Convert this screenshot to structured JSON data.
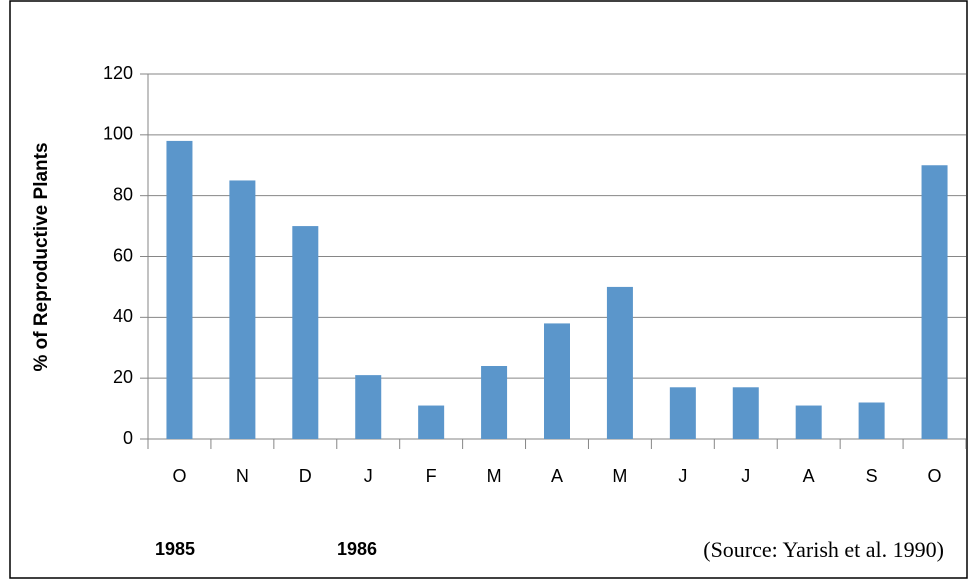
{
  "chart_data": {
    "type": "bar",
    "y_label": "% of Reproductive Plants",
    "categories": [
      "O",
      "N",
      "D",
      "J",
      "F",
      "M",
      "A",
      "M",
      "J",
      "J",
      "A",
      "S",
      "O"
    ],
    "values": [
      98,
      85,
      70,
      21,
      11,
      24,
      38,
      50,
      17,
      17,
      11,
      12,
      90
    ],
    "color": "#5b96cb",
    "ylim": [
      0,
      120
    ],
    "yticks": [
      0,
      20,
      40,
      60,
      80,
      100,
      120
    ],
    "grid": true,
    "annotations": [
      "1985",
      "1986",
      "(Source: Yarish et al. 1990)"
    ]
  }
}
